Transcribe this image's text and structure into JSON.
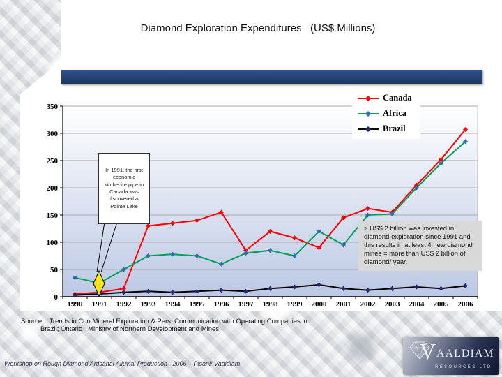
{
  "slide": {
    "title": "Diamond Exploration Expenditures   (US$ Millions)",
    "source_line1": "Source:   Trends in Cdn Mineral Exploration & Pers. Communication with Operating Companies in",
    "source_line2": "Brazil; Ontario   Ministry of Northern Development and Mines",
    "footer": "Workshop on Rough Diamond Artisanal Alluvial Production– 2006 – Pisani/ Vaaldiam"
  },
  "callout": {
    "text": "In 1991, the first economic kimberlite pipe in Canada was discovered at Pointe Lake"
  },
  "note": {
    "text": "> US$ 2 billion was invested in diamond exploration since 1991 and this results in at least 4 new diamond mines = more than US$ 2 billion of diamond/ year."
  },
  "logo": {
    "initial": "V",
    "rest": "AALDIAM",
    "subtext": "RESOURCES LTD"
  },
  "colors": {
    "title_bar": "#1d355f",
    "note_bg": "#d9d9d9",
    "event_marker": "#f6e31c"
  },
  "chart_data": {
    "type": "line",
    "x": [
      1990,
      1991,
      1992,
      1993,
      1994,
      1995,
      1996,
      1997,
      1998,
      1999,
      2000,
      2001,
      2002,
      2003,
      2004,
      2005,
      2006
    ],
    "series": [
      {
        "name": "Canada",
        "color": "#ff0000",
        "marker_color": "#ff0000",
        "values": [
          5,
          8,
          15,
          130,
          135,
          140,
          155,
          85,
          120,
          108,
          90,
          145,
          162,
          155,
          205,
          252,
          307
        ]
      },
      {
        "name": "Africa",
        "color": "#00a05a",
        "marker_color": "#2e6fb0",
        "values": [
          35,
          25,
          50,
          75,
          78,
          75,
          60,
          80,
          85,
          75,
          120,
          95,
          150,
          152,
          200,
          245,
          285
        ]
      },
      {
        "name": "Brazil",
        "color": "#000000",
        "marker_color": "#1d2a6e",
        "values": [
          3,
          5,
          8,
          10,
          8,
          10,
          12,
          10,
          15,
          18,
          22,
          15,
          12,
          15,
          18,
          15,
          20
        ]
      }
    ],
    "title": "Diamond Exploration Expenditures (US$ Millions)",
    "xlabel": "",
    "ylabel": "",
    "ylim": [
      0,
      350
    ],
    "ytick_interval": 50,
    "grid": true,
    "legend_position": "top-right",
    "annotation": "In 1991, the first economic kimberlite pipe in Canada was discovered at Pointe Lake"
  }
}
